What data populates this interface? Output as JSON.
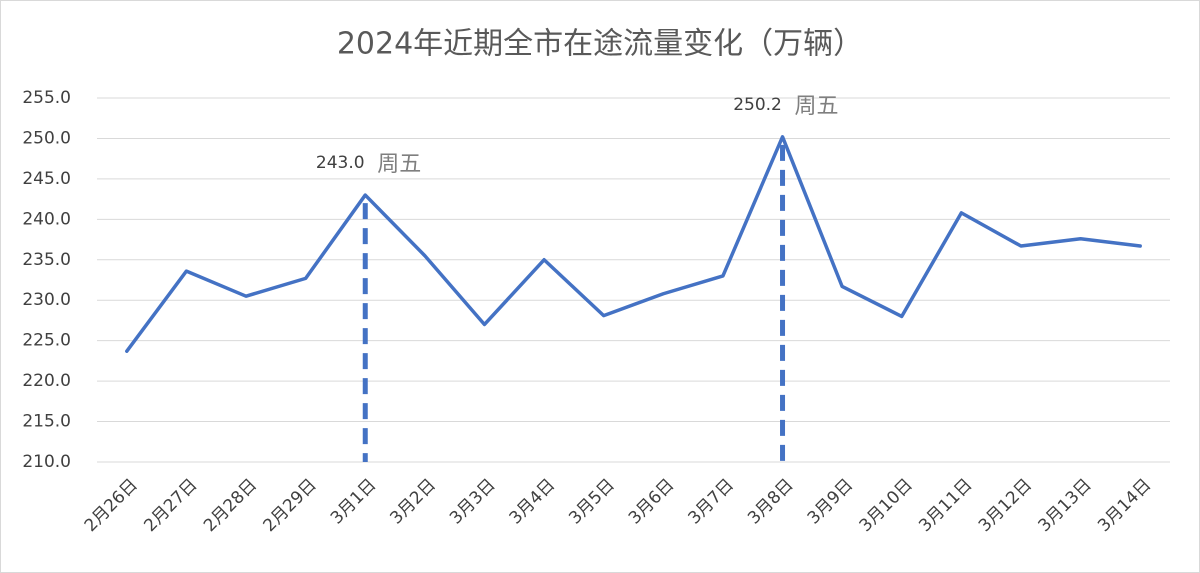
{
  "chart_data": {
    "type": "line",
    "title": "2024年近期全市在途流量变化（万辆）",
    "categories": [
      "2月26日",
      "2月27日",
      "2月28日",
      "2月29日",
      "3月1日",
      "3月2日",
      "3月3日",
      "3月4日",
      "3月5日",
      "3月6日",
      "3月7日",
      "3月8日",
      "3月9日",
      "3月10日",
      "3月11日",
      "3月12日",
      "3月13日",
      "3月14日"
    ],
    "series": [
      {
        "name": "在途流量",
        "color": "#4472c4",
        "values": [
          223.7,
          233.6,
          230.5,
          232.7,
          243.0,
          235.5,
          227.0,
          235.0,
          228.1,
          230.8,
          233.0,
          250.2,
          231.7,
          228.0,
          240.8,
          236.7,
          237.6,
          236.7
        ],
        "value_labels": [
          null,
          null,
          null,
          null,
          "243.0",
          null,
          null,
          null,
          null,
          null,
          null,
          "250.2",
          null,
          null,
          null,
          null,
          null,
          null
        ],
        "notes": [
          null,
          null,
          null,
          null,
          "周五",
          null,
          null,
          null,
          null,
          null,
          null,
          "周五",
          null,
          null,
          null,
          null,
          null,
          null
        ]
      }
    ],
    "ylim": [
      210,
      255
    ],
    "yticks": [
      {
        "value": 210,
        "label": "210.0"
      },
      {
        "value": 215,
        "label": "215.0"
      },
      {
        "value": 220,
        "label": "220.0"
      },
      {
        "value": 225,
        "label": "225.0"
      },
      {
        "value": 230,
        "label": "230.0"
      },
      {
        "value": 235,
        "label": "235.0"
      },
      {
        "value": 240,
        "label": "240.0"
      },
      {
        "value": 245,
        "label": "245.0"
      },
      {
        "value": 250,
        "label": "250.0"
      },
      {
        "value": 255,
        "label": "255.0"
      }
    ],
    "grid": true
  }
}
